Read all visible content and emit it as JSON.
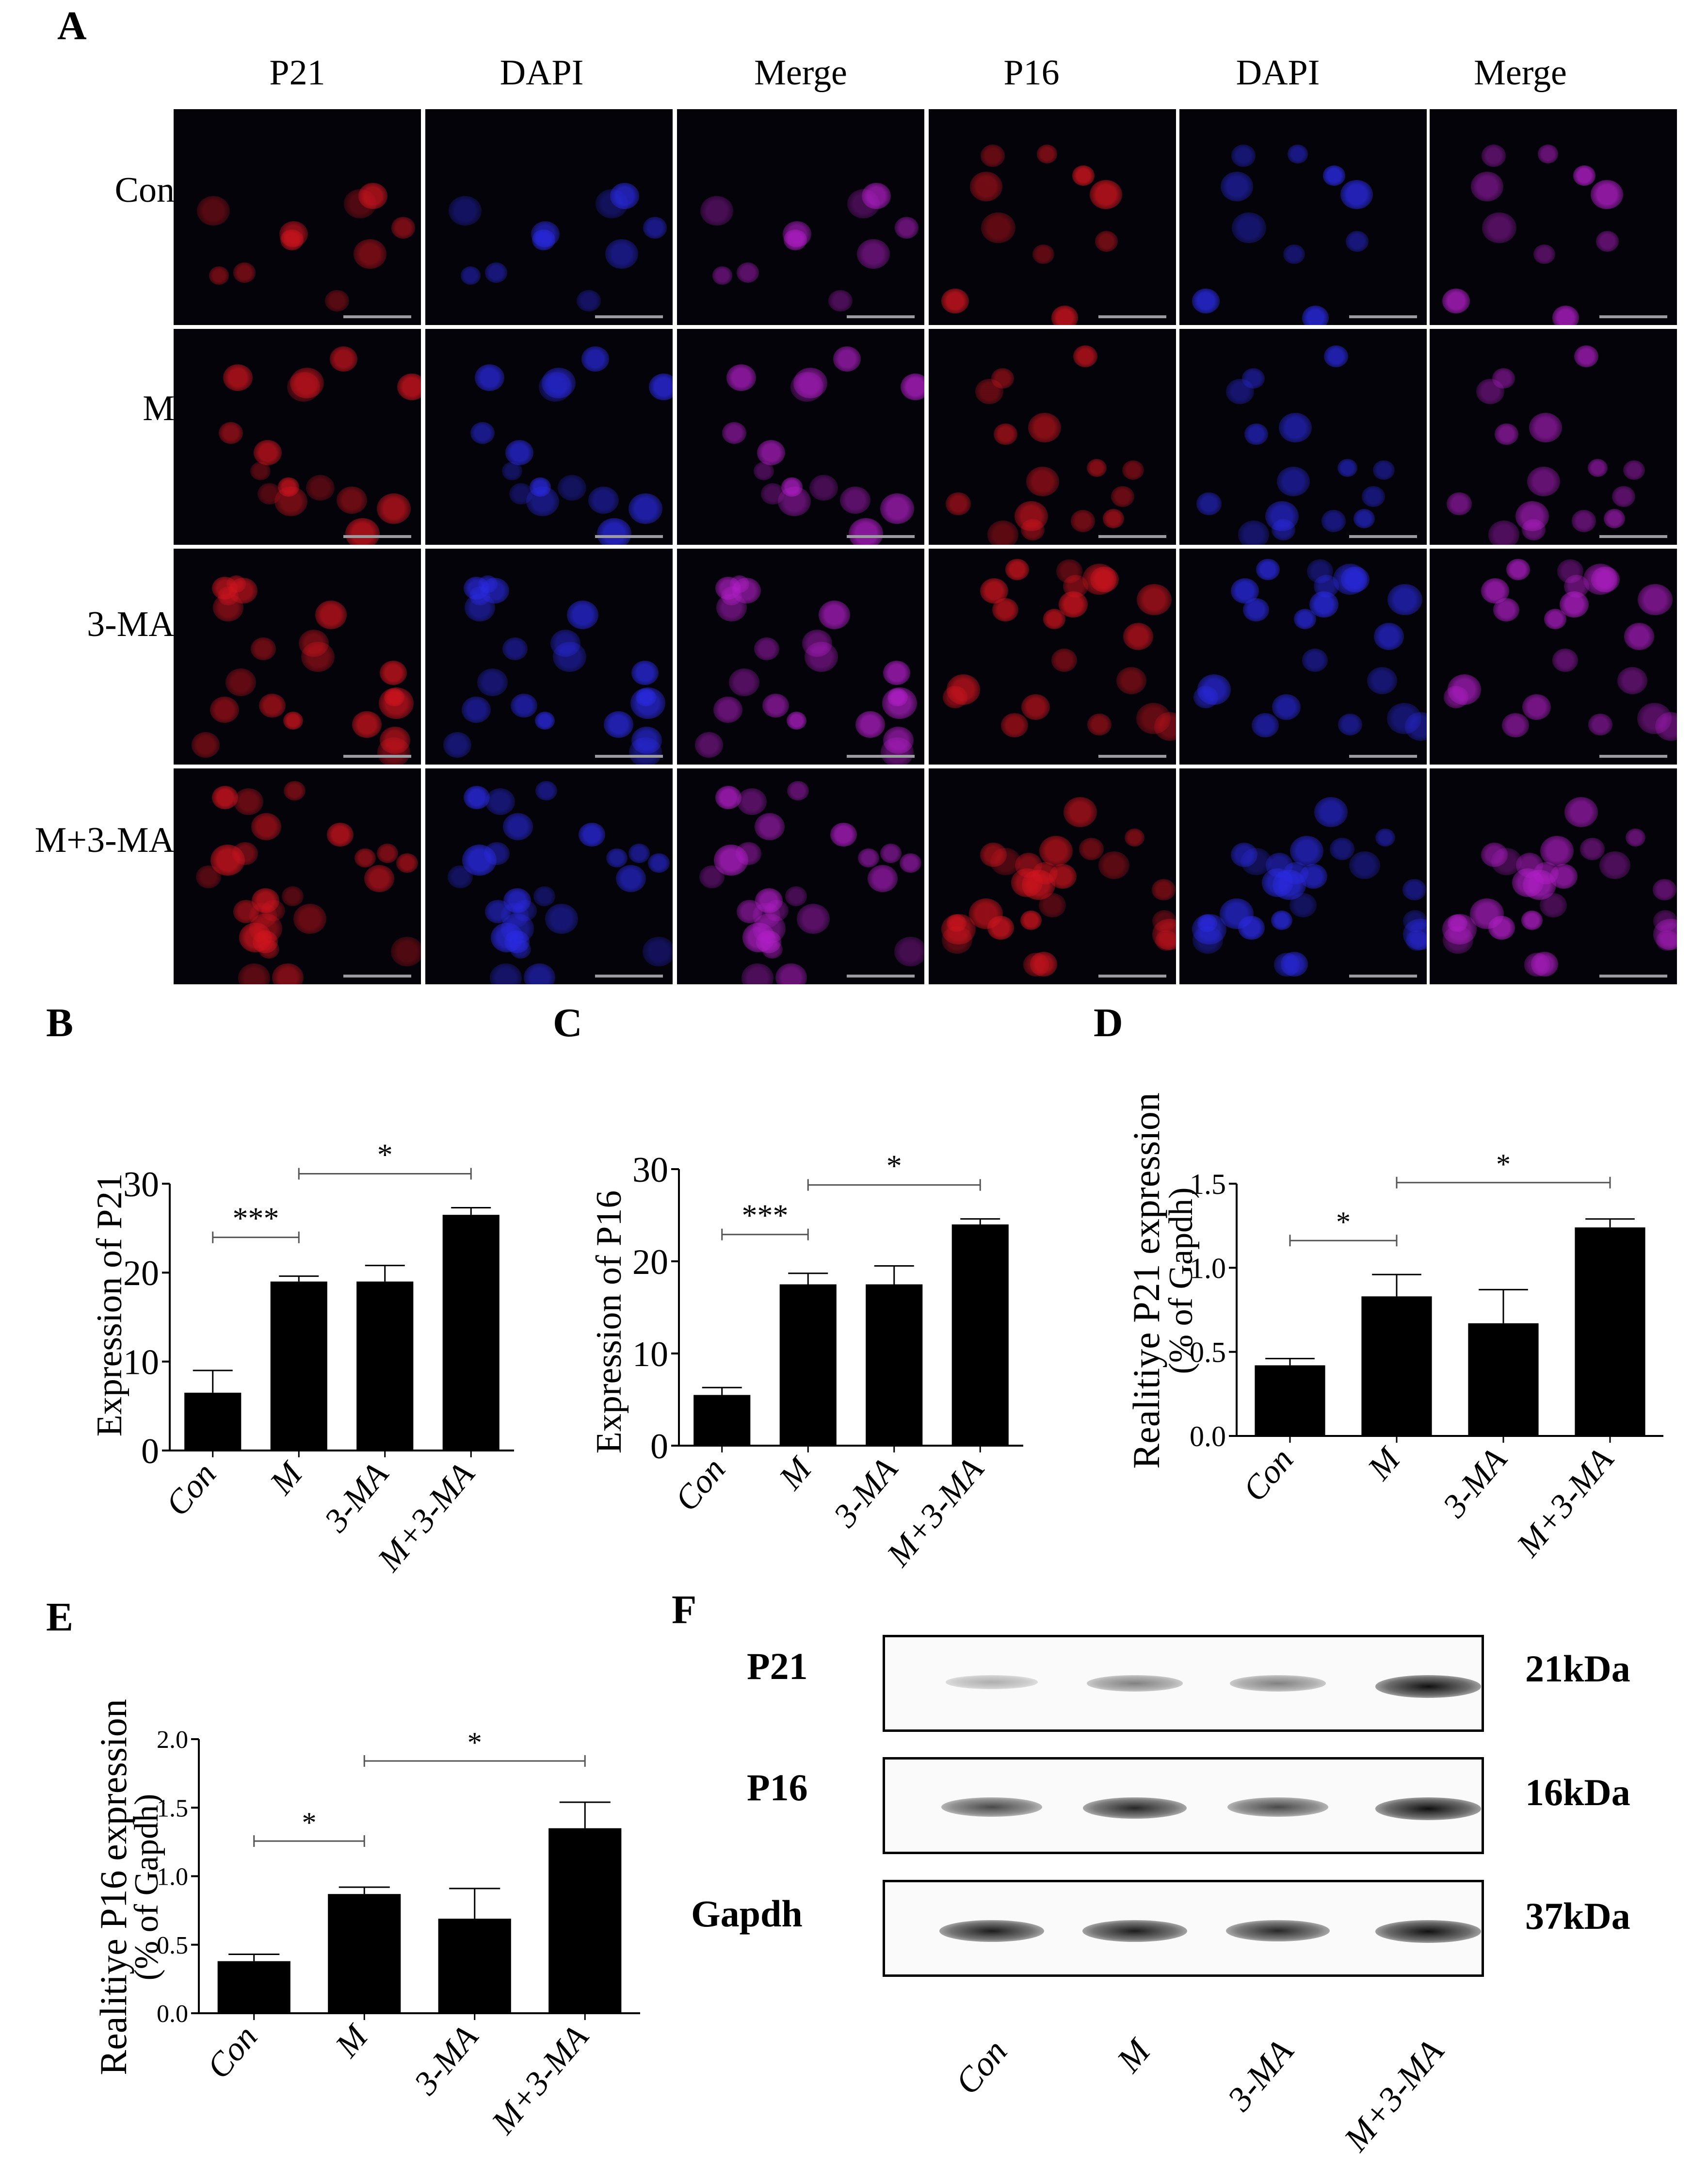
{
  "panel_letters": [
    "A",
    "B",
    "C",
    "D",
    "E",
    "F"
  ],
  "microscopy": {
    "column_headers": [
      "P21",
      "DAPI",
      "Merge",
      "P16",
      "DAPI",
      "Merge"
    ],
    "row_labels": [
      "Con",
      "M",
      "3-MA",
      "M+3-MA"
    ],
    "colors": {
      "p_channel": "#d2141e",
      "dapi": "#2a2ae6",
      "merge": "#b21ec8",
      "background": "#05030a"
    }
  },
  "chart_data": [
    {
      "type": "bar",
      "panel": "B",
      "categories": [
        "Con",
        "M",
        "3-MA",
        "M+3-MA"
      ],
      "values": [
        6.5,
        19,
        19,
        26.5
      ],
      "errors": [
        2.5,
        0.6,
        1.8,
        0.8
      ],
      "ylabel": "Expression of P21",
      "ylim": [
        0,
        30
      ],
      "yticks": [
        0,
        10,
        20,
        30
      ],
      "significance": [
        {
          "from": "Con",
          "to": "M",
          "label": "***"
        },
        {
          "from": "M",
          "to": "M+3-MA",
          "label": "*"
        }
      ]
    },
    {
      "type": "bar",
      "panel": "C",
      "categories": [
        "Con",
        "M",
        "3-MA",
        "M+3-MA"
      ],
      "values": [
        5.5,
        17.5,
        17.5,
        24
      ],
      "errors": [
        0.8,
        1.2,
        2.0,
        0.6
      ],
      "ylabel": "Expression of  P16",
      "ylim": [
        0,
        30
      ],
      "yticks": [
        0,
        10,
        20,
        30
      ],
      "significance": [
        {
          "from": "Con",
          "to": "M",
          "label": "***"
        },
        {
          "from": "M",
          "to": "M+3-MA",
          "label": "*"
        }
      ]
    },
    {
      "type": "bar",
      "panel": "D",
      "categories": [
        "Con",
        "M",
        "3-MA",
        "M+3-MA"
      ],
      "values": [
        0.42,
        0.83,
        0.67,
        1.24
      ],
      "errors": [
        0.04,
        0.13,
        0.2,
        0.05
      ],
      "ylabel": "Realitiye P21 expression",
      "ylabel2": "(% of Gapdh)",
      "ylim": [
        0,
        1.5
      ],
      "yticks": [
        0.0,
        0.5,
        1.0,
        1.5
      ],
      "tick_decimals": 1,
      "significance": [
        {
          "from": "Con",
          "to": "M",
          "label": "*"
        },
        {
          "from": "M",
          "to": "M+3-MA",
          "label": "*"
        }
      ]
    },
    {
      "type": "bar",
      "panel": "E",
      "categories": [
        "Con",
        "M",
        "3-MA",
        "M+3-MA"
      ],
      "values": [
        0.38,
        0.87,
        0.69,
        1.35
      ],
      "errors": [
        0.05,
        0.05,
        0.22,
        0.19
      ],
      "ylabel": "Realitiye P16 expression",
      "ylabel2": "(% of Gapdh)",
      "ylim": [
        0,
        2.0
      ],
      "yticks": [
        0.0,
        0.5,
        1.0,
        1.5,
        2.0
      ],
      "tick_decimals": 1,
      "significance": [
        {
          "from": "Con",
          "to": "M",
          "label": "*"
        },
        {
          "from": "M",
          "to": "M+3-MA",
          "label": "*"
        }
      ]
    }
  ],
  "western_blot": {
    "proteins": [
      {
        "name": "P21",
        "size": "21kDa",
        "intensity": [
          0.25,
          0.45,
          0.45,
          0.95
        ]
      },
      {
        "name": "P16",
        "size": "16kDa",
        "intensity": [
          0.7,
          0.85,
          0.7,
          0.95
        ]
      },
      {
        "name": "Gapdh",
        "size": "37kDa",
        "intensity": [
          0.9,
          0.9,
          0.85,
          0.95
        ]
      }
    ],
    "lanes": [
      "Con",
      "M",
      "3-MA",
      "M+3-MA"
    ]
  }
}
